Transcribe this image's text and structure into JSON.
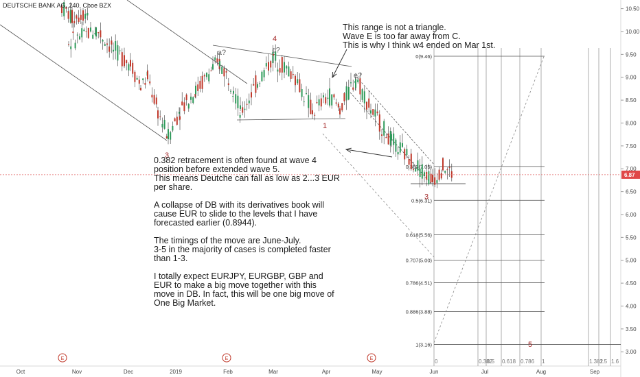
{
  "header": {
    "title": "DEUTSCHE BANK AG, 240, Cboe BZX"
  },
  "price_label": "6.87",
  "notes": {
    "top": "This range is not a triangle.\nWave E is too far away from C.\nThis is why I think w4 ended on Mar 1st.",
    "main": "0.382 retracement is often found at wave 4\nposition before extended wave 5.\nThis means Deutche can fall as low as 2...3 EUR\nper share.\n\nA collapse of DB with its derivatives book will\ncause EUR to slide to the levels that I have\nforecasted earlier (0.8944).\n\nThe timings of the move are June-July.\n3-5 in the majority of cases is completed faster\nthan 1-3.\n\nI totally expect EURJPY, EURGBP, GBP and\nEUR to make a big move together with this\nmove in DB. In fact, this will be one big move of\nOne Big Market."
  },
  "chart_data": {
    "type": "candlestick",
    "title": "DEUTSCHE BANK AG, 240, Cboe BZX",
    "ylim": [
      2.7,
      10.7
    ],
    "y_ticks": [
      "10.50",
      "10.00",
      "9.50",
      "9.00",
      "8.50",
      "8.00",
      "7.50",
      "7.00",
      "6.50",
      "6.00",
      "5.50",
      "5.00",
      "4.50",
      "4.00",
      "3.50",
      "3.00"
    ],
    "x_ticks": [
      "Oct",
      "Nov",
      "Dec",
      "2019",
      "Feb",
      "Mar",
      "Apr",
      "May",
      "Jun",
      "Jul",
      "Aug",
      "Sep"
    ],
    "last_price": 6.87,
    "price_path": [
      {
        "date": "Oct",
        "price": 10.55
      },
      {
        "date": "Oct",
        "price": 10.3
      },
      {
        "date": "Nov",
        "price": 10.45
      },
      {
        "date": "Nov",
        "price": 9.75
      },
      {
        "date": "Nov",
        "price": 10.05
      },
      {
        "date": "Nov",
        "price": 9.6
      },
      {
        "date": "Dec",
        "price": 9.3
      },
      {
        "date": "Dec",
        "price": 8.8
      },
      {
        "date": "Dec",
        "price": 9.0
      },
      {
        "date": "Dec",
        "price": 8.25
      },
      {
        "date": "2019",
        "price": 7.7
      },
      {
        "date": "2019",
        "price": 8.3
      },
      {
        "date": "2019",
        "price": 8.7
      },
      {
        "date": "2019",
        "price": 9.2
      },
      {
        "date": "Feb",
        "price": 9.3
      },
      {
        "date": "Feb",
        "price": 8.8
      },
      {
        "date": "Feb",
        "price": 8.2
      },
      {
        "date": "Mar",
        "price": 8.9
      },
      {
        "date": "Mar",
        "price": 9.45
      },
      {
        "date": "Mar",
        "price": 9.0
      },
      {
        "date": "Apr",
        "price": 8.25
      },
      {
        "date": "Apr",
        "price": 8.6
      },
      {
        "date": "Apr",
        "price": 8.3
      },
      {
        "date": "May",
        "price": 9.0
      },
      {
        "date": "May",
        "price": 8.3
      },
      {
        "date": "May",
        "price": 7.6
      },
      {
        "date": "Jun",
        "price": 6.75
      },
      {
        "date": "Jun",
        "price": 7.05
      },
      {
        "date": "Jun",
        "price": 6.87
      }
    ],
    "wave_labels": [
      {
        "label": "3",
        "date": "2019",
        "price": 7.3
      },
      {
        "label": "a?",
        "date": "Feb",
        "price": 9.55
      },
      {
        "label": "4",
        "date": "Mar",
        "price": 9.85
      },
      {
        "label": "c?",
        "date": "Mar",
        "price": 9.6
      },
      {
        "label": "1",
        "date": "Apr",
        "price": 7.95
      },
      {
        "label": "e?",
        "date": "May",
        "price": 9.05
      },
      {
        "label": "3",
        "date": "Jun",
        "price": 6.4
      },
      {
        "label": "5",
        "date": "Aug",
        "price": 3.17
      }
    ],
    "fib_levels": [
      {
        "ratio": "0",
        "price": 9.46,
        "label": "0(9.46)"
      },
      {
        "ratio": "0.382",
        "price": 7.05,
        "label": "0.382(7.05)"
      },
      {
        "ratio": "0.5",
        "price": 6.31,
        "label": "0.5(6.31)"
      },
      {
        "ratio": "0.618",
        "price": 5.56,
        "label": "0.618(5.56)"
      },
      {
        "ratio": "0.707",
        "price": 5.0,
        "label": "0.707(5.00)"
      },
      {
        "ratio": "0.786",
        "price": 4.51,
        "label": "0.786(4.51)"
      },
      {
        "ratio": "0.886",
        "price": 3.88,
        "label": "0.886(3.88)"
      },
      {
        "ratio": "1",
        "price": 3.16,
        "label": "1(3.16)"
      }
    ],
    "time_fib_labels": [
      "0",
      "0.382",
      "0.5",
      "0.618",
      "0.786",
      "1",
      "1.382",
      "1.5",
      "1.6"
    ],
    "event_markers": [
      "E",
      "E",
      "E"
    ]
  }
}
